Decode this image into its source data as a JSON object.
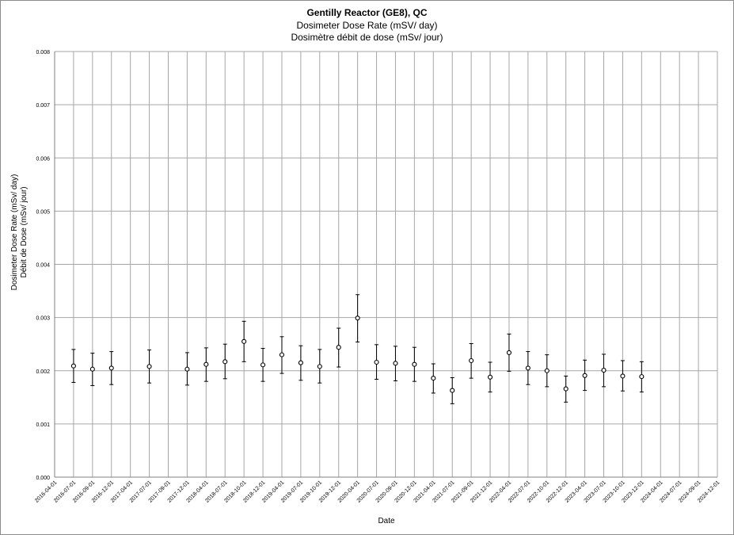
{
  "chart_data": {
    "type": "scatter",
    "title": "Gentilly Reactor (GE8), QC",
    "subtitle": [
      "Dosimeter Dose Rate (mSV/ day)",
      "Dosimètre débit de dose (mSv/ jour)"
    ],
    "xlabel": "Date",
    "ylabel": [
      "Dosimeter Dose Rate (mSv/ day)",
      "Débit de Dose (mSv/ jour)"
    ],
    "ylim": [
      0,
      0.008
    ],
    "yticks": [
      "0.000",
      "0.001",
      "0.002",
      "0.003",
      "0.004",
      "0.005",
      "0.006",
      "0.007",
      "0.008"
    ],
    "xticks": [
      "2016-04-01",
      "2016-07-01",
      "2016-09-01",
      "2016-12-01",
      "2017-04-01",
      "2017-07-01",
      "2017-09-01",
      "2017-12-01",
      "2018-04-01",
      "2018-07-01",
      "2018-10-01",
      "2018-12-01",
      "2019-04-01",
      "2019-07-01",
      "2019-10-01",
      "2019-12-01",
      "2020-04-01",
      "2020-07-01",
      "2020-09-01",
      "2020-12-01",
      "2021-04-01",
      "2021-07-01",
      "2021-09-01",
      "2021-12-01",
      "2022-04-01",
      "2022-07-01",
      "2022-10-01",
      "2022-12-01",
      "2023-04-01",
      "2023-07-01",
      "2023-10-01",
      "2023-12-01",
      "2024-04-01",
      "2024-07-01",
      "2024-09-01",
      "2024-12-01"
    ],
    "grid": true,
    "marker": "open-circle",
    "error_bars": true,
    "points": [
      {
        "x": "2016-07-01",
        "y": 0.00209,
        "lo": 0.00178,
        "hi": 0.0024
      },
      {
        "x": "2016-09-01",
        "y": 0.00203,
        "lo": 0.00172,
        "hi": 0.00233
      },
      {
        "x": "2016-12-01",
        "y": 0.00205,
        "lo": 0.00174,
        "hi": 0.00236
      },
      {
        "x": "2017-07-01",
        "y": 0.00208,
        "lo": 0.00177,
        "hi": 0.00239
      },
      {
        "x": "2017-12-01",
        "y": 0.00203,
        "lo": 0.00173,
        "hi": 0.00234
      },
      {
        "x": "2018-04-01",
        "y": 0.00212,
        "lo": 0.0018,
        "hi": 0.00243
      },
      {
        "x": "2018-07-01",
        "y": 0.00217,
        "lo": 0.00185,
        "hi": 0.0025
      },
      {
        "x": "2018-10-01",
        "y": 0.00255,
        "lo": 0.00217,
        "hi": 0.00293
      },
      {
        "x": "2018-12-01",
        "y": 0.00211,
        "lo": 0.0018,
        "hi": 0.00242
      },
      {
        "x": "2019-04-01",
        "y": 0.0023,
        "lo": 0.00195,
        "hi": 0.00264
      },
      {
        "x": "2019-07-01",
        "y": 0.00215,
        "lo": 0.00182,
        "hi": 0.00247
      },
      {
        "x": "2019-10-01",
        "y": 0.00208,
        "lo": 0.00177,
        "hi": 0.0024
      },
      {
        "x": "2019-12-01",
        "y": 0.00244,
        "lo": 0.00207,
        "hi": 0.0028
      },
      {
        "x": "2020-04-01",
        "y": 0.00299,
        "lo": 0.00254,
        "hi": 0.00343
      },
      {
        "x": "2020-07-01",
        "y": 0.00216,
        "lo": 0.00184,
        "hi": 0.00249
      },
      {
        "x": "2020-09-01",
        "y": 0.00214,
        "lo": 0.00181,
        "hi": 0.00246
      },
      {
        "x": "2020-12-01",
        "y": 0.00212,
        "lo": 0.0018,
        "hi": 0.00244
      },
      {
        "x": "2021-04-01",
        "y": 0.00186,
        "lo": 0.00158,
        "hi": 0.00213
      },
      {
        "x": "2021-07-01",
        "y": 0.00163,
        "lo": 0.00138,
        "hi": 0.00187
      },
      {
        "x": "2021-09-01",
        "y": 0.00219,
        "lo": 0.00186,
        "hi": 0.00251
      },
      {
        "x": "2021-12-01",
        "y": 0.00188,
        "lo": 0.0016,
        "hi": 0.00216
      },
      {
        "x": "2022-04-01",
        "y": 0.00234,
        "lo": 0.00199,
        "hi": 0.00269
      },
      {
        "x": "2022-07-01",
        "y": 0.00205,
        "lo": 0.00174,
        "hi": 0.00236
      },
      {
        "x": "2022-10-01",
        "y": 0.002,
        "lo": 0.0017,
        "hi": 0.0023
      },
      {
        "x": "2022-12-01",
        "y": 0.00166,
        "lo": 0.00141,
        "hi": 0.0019
      },
      {
        "x": "2023-04-01",
        "y": 0.00191,
        "lo": 0.00163,
        "hi": 0.0022
      },
      {
        "x": "2023-07-01",
        "y": 0.00201,
        "lo": 0.0017,
        "hi": 0.00231
      },
      {
        "x": "2023-10-01",
        "y": 0.0019,
        "lo": 0.00162,
        "hi": 0.00219
      },
      {
        "x": "2023-12-01",
        "y": 0.00189,
        "lo": 0.0016,
        "hi": 0.00217
      }
    ],
    "colors": {
      "grid": "#a6a6a6",
      "marker": "#000000",
      "background": "#ffffff"
    }
  }
}
